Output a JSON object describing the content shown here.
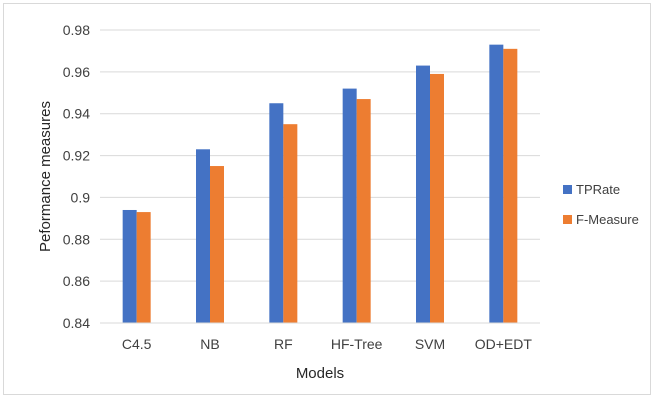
{
  "chart_data": {
    "type": "bar",
    "title": "",
    "xlabel": "Models",
    "ylabel": "Peformance measures",
    "categories": [
      "C4.5",
      "NB",
      "RF",
      "HF-Tree",
      "SVM",
      "OD+EDT"
    ],
    "series": [
      {
        "name": "TPRate",
        "color": "#4472C4",
        "values": [
          0.894,
          0.923,
          0.945,
          0.952,
          0.963,
          0.973
        ]
      },
      {
        "name": "F-Measure",
        "color": "#ED7D31",
        "values": [
          0.893,
          0.915,
          0.935,
          0.947,
          0.959,
          0.971
        ]
      }
    ],
    "ylim": [
      0.84,
      0.98
    ],
    "yticks": [
      "0.84",
      "0.86",
      "0.88",
      "0.9",
      "0.92",
      "0.94",
      "0.96",
      "0.98"
    ],
    "grid": true,
    "legend_position": "right"
  }
}
